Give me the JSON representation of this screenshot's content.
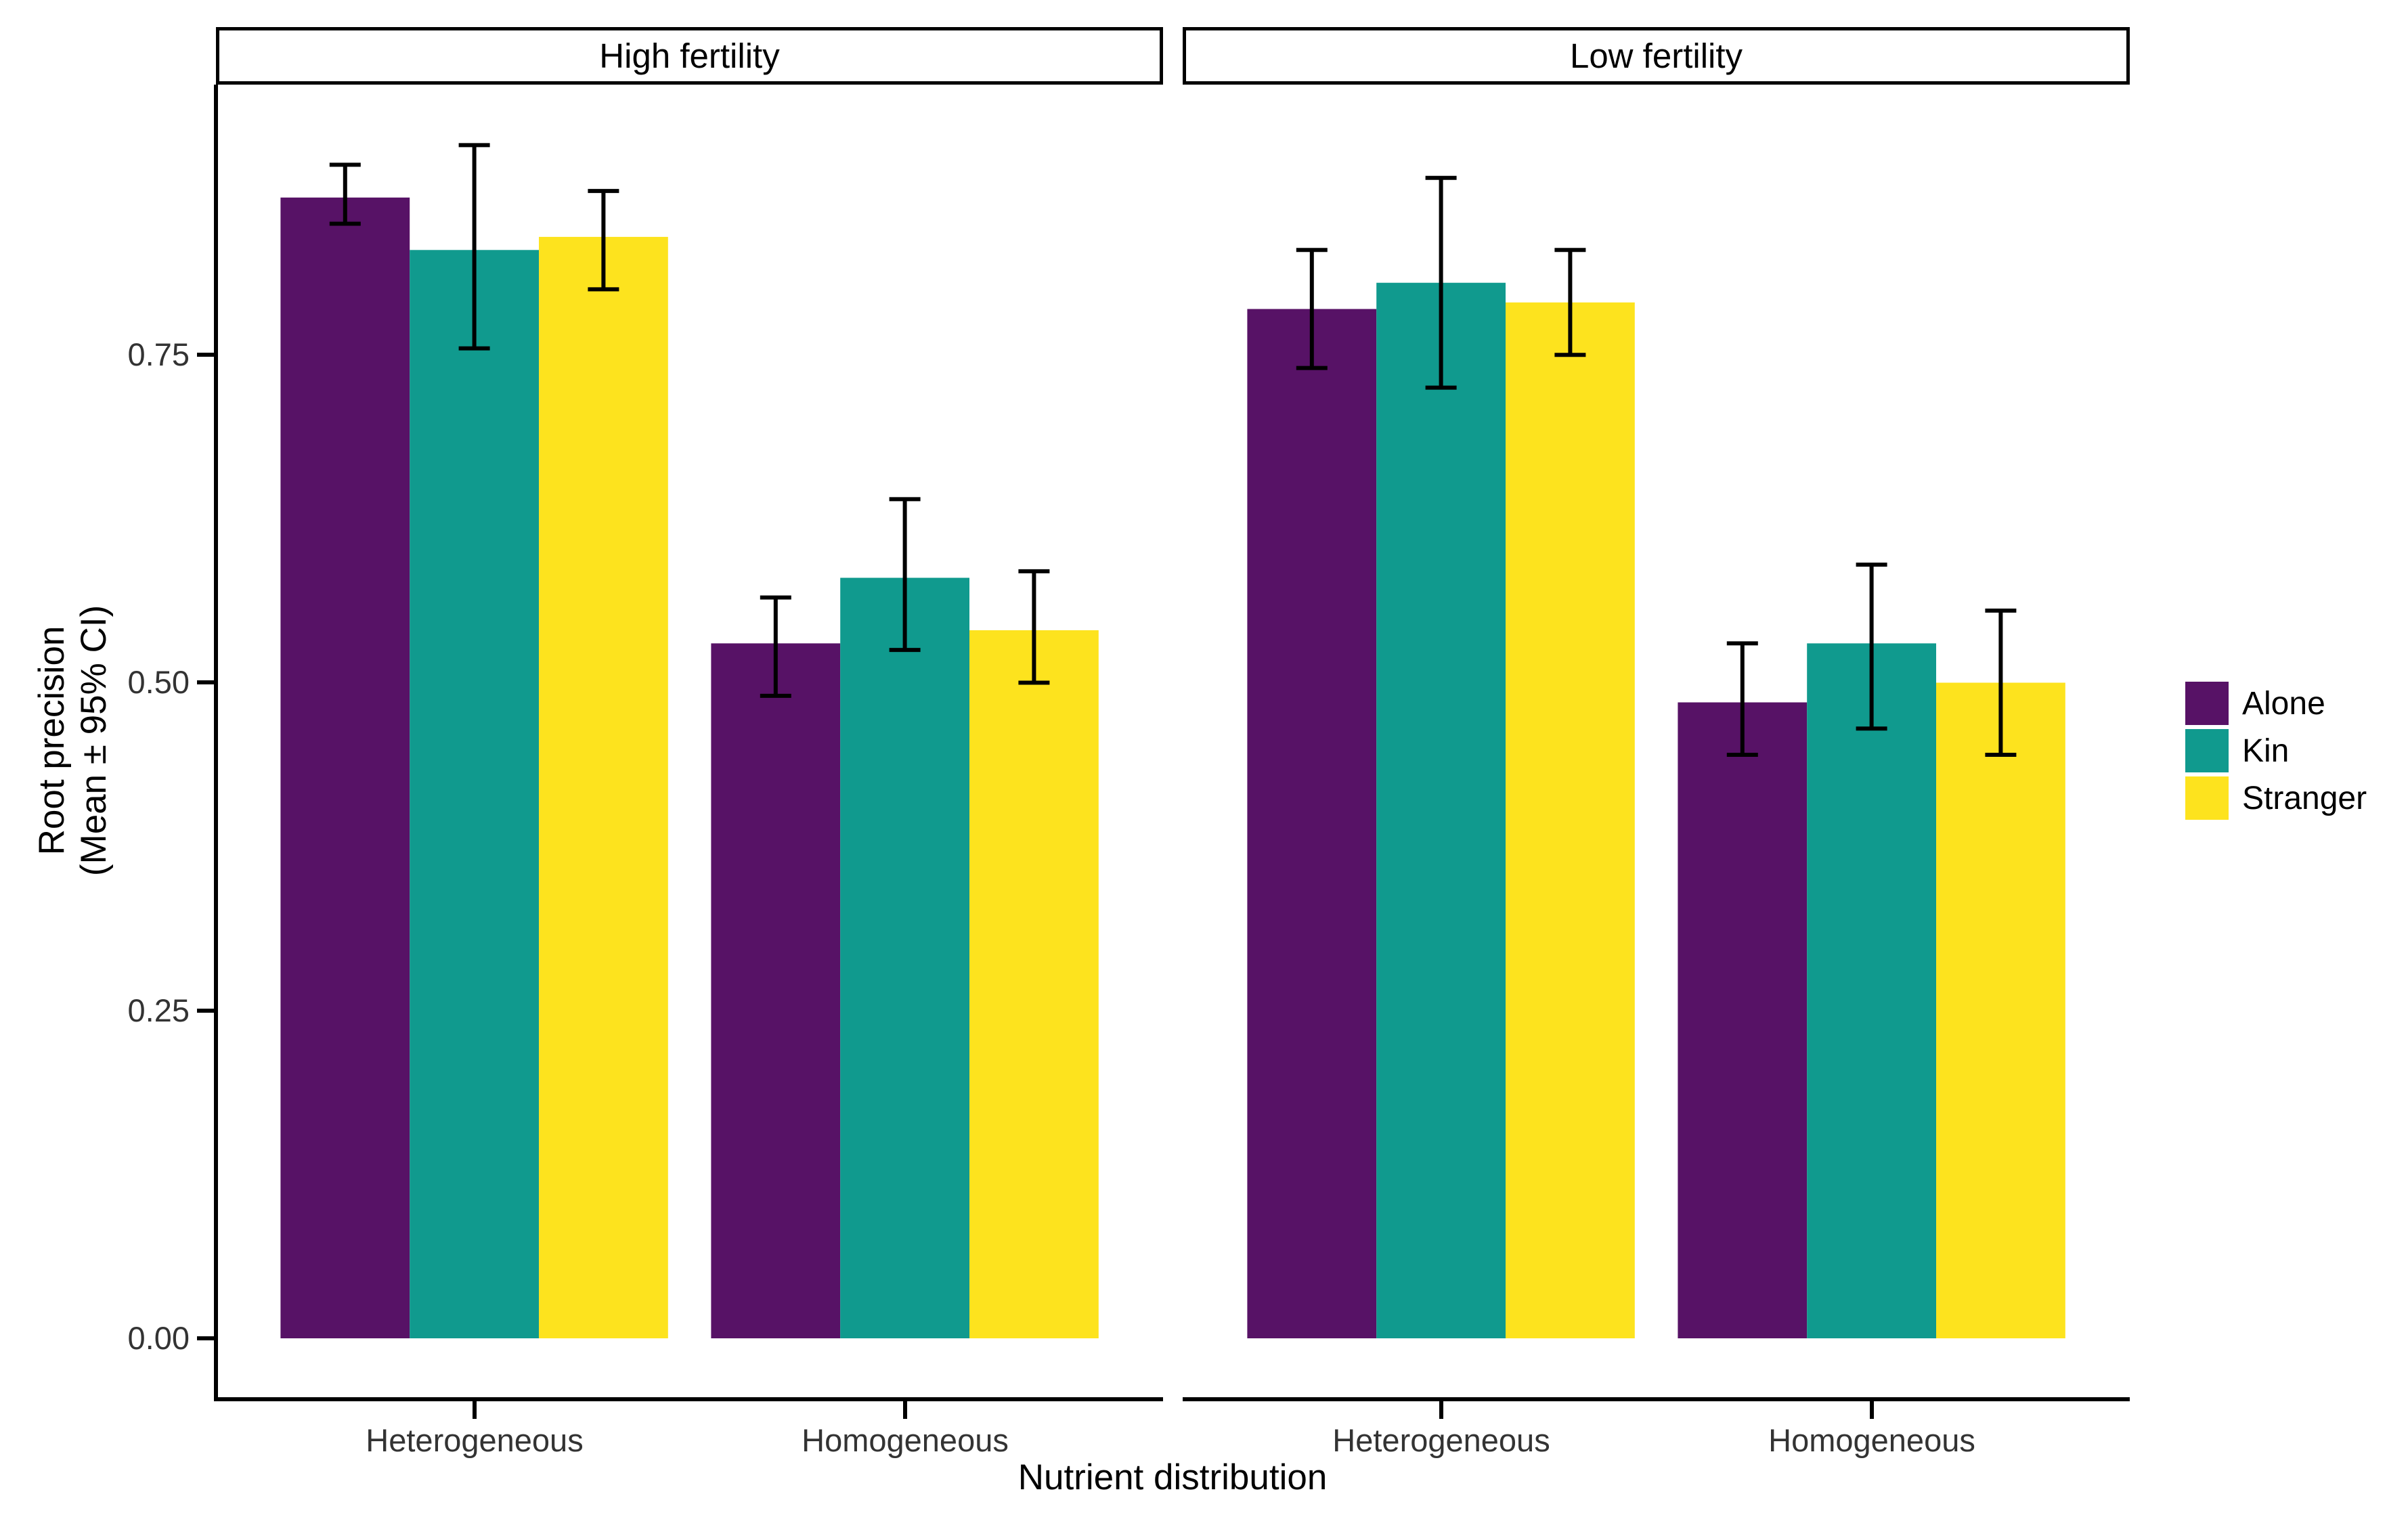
{
  "chart_data": {
    "type": "bar",
    "title": "",
    "xlabel": "Nutrient distribution",
    "ylabel": "Root precision (Mean ± 95% CI)",
    "ylabel_line1": "Root precision",
    "ylabel_line2": "(Mean ± 95% CI)",
    "y_ticks": [
      "0.00",
      "0.25",
      "0.50",
      "0.75"
    ],
    "y_tick_values": [
      0,
      0.25,
      0.5,
      0.75
    ],
    "ylim": [
      -0.045,
      0.956
    ],
    "grid": false,
    "legend_position": "right",
    "error_bars": "95% CI",
    "series": [
      {
        "name": "Alone",
        "color": "#571266"
      },
      {
        "name": "Kin",
        "color": "#109a8e"
      },
      {
        "name": "Stranger",
        "color": "#fde31e"
      }
    ],
    "facets": [
      {
        "label": "High fertility",
        "groups": [
          {
            "category": "Heterogeneous",
            "bars": [
              {
                "series": "Alone",
                "mean": 0.87,
                "ci_low": 0.85,
                "ci_high": 0.895
              },
              {
                "series": "Kin",
                "mean": 0.83,
                "ci_low": 0.755,
                "ci_high": 0.91
              },
              {
                "series": "Stranger",
                "mean": 0.84,
                "ci_low": 0.8,
                "ci_high": 0.875
              }
            ]
          },
          {
            "category": "Homogeneous",
            "bars": [
              {
                "series": "Alone",
                "mean": 0.53,
                "ci_low": 0.49,
                "ci_high": 0.565
              },
              {
                "series": "Kin",
                "mean": 0.58,
                "ci_low": 0.525,
                "ci_high": 0.64
              },
              {
                "series": "Stranger",
                "mean": 0.54,
                "ci_low": 0.5,
                "ci_high": 0.585
              }
            ]
          }
        ]
      },
      {
        "label": "Low fertility",
        "groups": [
          {
            "category": "Heterogeneous",
            "bars": [
              {
                "series": "Alone",
                "mean": 0.785,
                "ci_low": 0.74,
                "ci_high": 0.83
              },
              {
                "series": "Kin",
                "mean": 0.805,
                "ci_low": 0.725,
                "ci_high": 0.885
              },
              {
                "series": "Stranger",
                "mean": 0.79,
                "ci_low": 0.75,
                "ci_high": 0.83
              }
            ]
          },
          {
            "category": "Homogeneous",
            "bars": [
              {
                "series": "Alone",
                "mean": 0.485,
                "ci_low": 0.445,
                "ci_high": 0.53
              },
              {
                "series": "Kin",
                "mean": 0.53,
                "ci_low": 0.465,
                "ci_high": 0.59
              },
              {
                "series": "Stranger",
                "mean": 0.5,
                "ci_low": 0.445,
                "ci_high": 0.555
              }
            ]
          }
        ]
      }
    ]
  }
}
